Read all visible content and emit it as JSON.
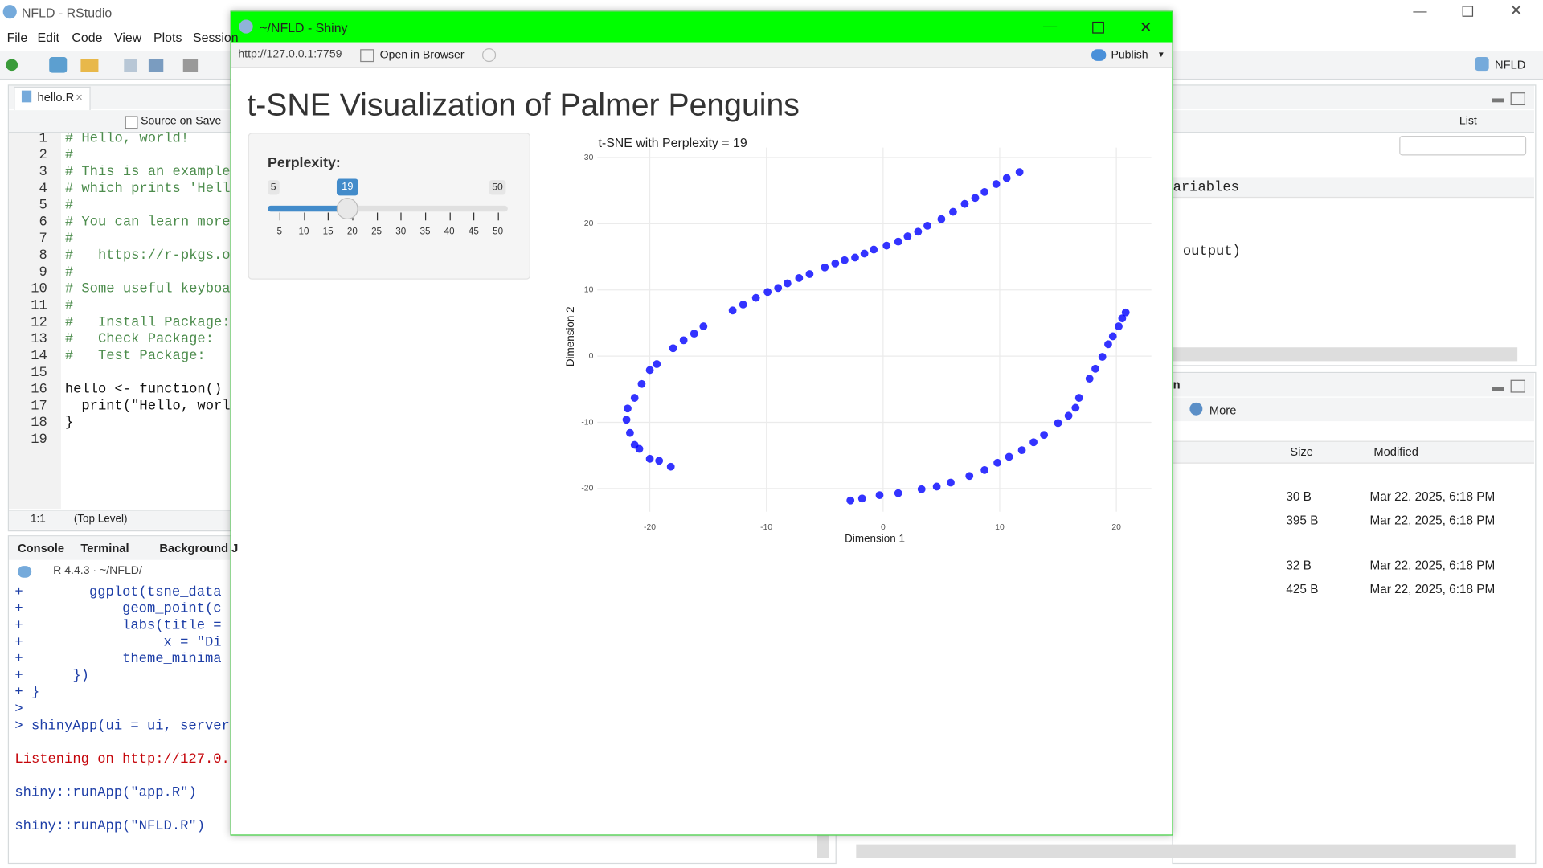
{
  "rstudio": {
    "title": "NFLD - RStudio",
    "menu": [
      "File",
      "Edit",
      "Code",
      "View",
      "Plots",
      "Session"
    ],
    "project": "NFLD",
    "editor": {
      "tab": "hello.R",
      "source_on_save": "Source on Save",
      "lines": [
        {
          "n": "1",
          "code": "# Hello, world!"
        },
        {
          "n": "2",
          "code": "#"
        },
        {
          "n": "3",
          "code": "# This is an example"
        },
        {
          "n": "4",
          "code": "# which prints 'Hell"
        },
        {
          "n": "5",
          "code": "#"
        },
        {
          "n": "6",
          "code": "# You can learn more"
        },
        {
          "n": "7",
          "code": "#"
        },
        {
          "n": "8",
          "code": "#   https://r-pkgs.o"
        },
        {
          "n": "9",
          "code": "#"
        },
        {
          "n": "10",
          "code": "# Some useful keyboa"
        },
        {
          "n": "11",
          "code": "#"
        },
        {
          "n": "12",
          "code": "#   Install Package:"
        },
        {
          "n": "13",
          "code": "#   Check Package:"
        },
        {
          "n": "14",
          "code": "#   Test Package:"
        },
        {
          "n": "15"
        },
        {
          "n": "16",
          "code": "hello <- function()"
        },
        {
          "n": "17",
          "code": "  print(\"Hello, worl"
        },
        {
          "n": "18",
          "code": "}"
        },
        {
          "n": "19"
        }
      ],
      "position": "1:1",
      "scope": "(Top Level)"
    },
    "console": {
      "tabs": [
        "Console",
        "Terminal",
        "Background J"
      ],
      "version": "R 4.4.3 · ~/NFLD/",
      "lines": [
        "+        ggplot(tsne_data",
        "+            geom_point(c",
        "+            labs(title =",
        "+                 x = \"Di",
        "+            theme_minima",
        "+      })",
        "+ }",
        ">",
        "> shinyApp(ui = ui, server",
        "Listening on http://127.0.",
        "shiny::runApp(\"app.R\")",
        "shiny::runApp(\"NFLD.R\")"
      ]
    },
    "environment": {
      "view": "List",
      "rows": [
        "ariables",
        "output)"
      ]
    },
    "files": {
      "tab": "n",
      "more": "More",
      "columns": [
        "Size",
        "Modified"
      ],
      "rows": [
        [
          "30 B",
          "Mar 22, 2025, 6:18 PM"
        ],
        [
          "395 B",
          "Mar 22, 2025, 6:18 PM"
        ],
        [
          "32 B",
          "Mar 22, 2025, 6:18 PM"
        ],
        [
          "425 B",
          "Mar 22, 2025, 6:18 PM"
        ]
      ]
    }
  },
  "shiny": {
    "window_title": "~/NFLD - Shiny",
    "url": "http://127.0.0.1:7759",
    "open_in_browser": "Open in Browser",
    "publish": "Publish",
    "app_title": "t-SNE Visualization of Palmer Penguins",
    "slider": {
      "label": "Perplexity:",
      "min": 5,
      "max": 50,
      "value": 19,
      "ticks": [
        5,
        10,
        15,
        20,
        25,
        30,
        35,
        40,
        45,
        50
      ]
    }
  },
  "chart_data": {
    "type": "scatter",
    "title": "t-SNE with Perplexity = 19",
    "x_label": "Dimension 1",
    "y_label": "Dimension 2",
    "color": "#0000ff",
    "grid": true,
    "xlim": [
      -24.5,
      23
    ],
    "ylim": [
      -23.5,
      31.5
    ],
    "xticks": [
      -20,
      -10,
      0,
      10,
      20
    ],
    "yticks": [
      -20,
      -10,
      0,
      10,
      20,
      30
    ],
    "x": [
      -12.9,
      -12.0,
      -10.9,
      -9.9,
      -9.0,
      -8.2,
      -7.2,
      -6.3,
      -5.0,
      -4.1,
      -3.3,
      -2.4,
      -1.6,
      -0.8,
      0.3,
      1.3,
      2.1,
      3.0,
      3.8,
      5.0,
      6.0,
      7.0,
      7.9,
      8.7,
      9.7,
      10.6,
      11.7,
      -15.4,
      -16.2,
      -17.1,
      -18.0,
      -19.4,
      -20.0,
      -20.7,
      -21.3,
      -21.9,
      -22.0,
      -21.7,
      -21.3,
      -20.9,
      -20.0,
      -19.2,
      -18.2,
      -2.8,
      -1.8,
      -0.3,
      1.3,
      3.3,
      4.6,
      5.8,
      7.4,
      8.7,
      9.8,
      10.8,
      11.9,
      12.9,
      13.8,
      15.0,
      15.9,
      16.5,
      16.8,
      17.7,
      18.2,
      18.8,
      19.3,
      19.7,
      20.2,
      20.5,
      20.8
    ],
    "values": [
      6.9,
      7.8,
      8.8,
      9.7,
      10.3,
      11.0,
      11.8,
      12.4,
      13.4,
      14.0,
      14.5,
      14.9,
      15.5,
      16.1,
      16.7,
      17.3,
      18.1,
      18.8,
      19.7,
      20.7,
      21.8,
      23.0,
      23.9,
      24.8,
      26.0,
      26.9,
      27.8,
      4.5,
      3.4,
      2.4,
      1.2,
      -1.2,
      -2.1,
      -4.2,
      -6.3,
      -7.9,
      -9.6,
      -11.6,
      -13.4,
      -14.0,
      -15.5,
      -15.8,
      -16.7,
      -21.8,
      -21.5,
      -21.0,
      -20.7,
      -20.1,
      -19.7,
      -19.1,
      -18.1,
      -17.2,
      -16.1,
      -15.2,
      -14.2,
      -13.0,
      -11.9,
      -10.1,
      -9.0,
      -7.8,
      -6.3,
      -3.4,
      -1.9,
      -0.1,
      1.8,
      3.0,
      4.5,
      5.7,
      6.6
    ]
  }
}
